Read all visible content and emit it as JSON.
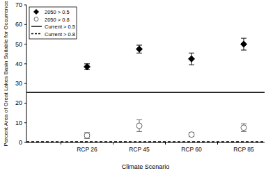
{
  "chart_data": {
    "type": "scatter",
    "x_label": "Climate Scenario",
    "y_label": "Percent Area of Great Lakes Basin Suitable for Occurrence",
    "categories": [
      null,
      "RCP 26",
      "RCP 45",
      "RCP 60",
      "RCP 85"
    ],
    "ylim": [
      0,
      70
    ],
    "yticks": [
      0,
      10,
      20,
      30,
      40,
      50,
      60,
      70
    ],
    "legend": "upper left",
    "series": [
      {
        "name": "2050 > 0.5",
        "type": "scatter",
        "marker": "diamond",
        "color": "#000000",
        "values": [
          null,
          38.5,
          47.5,
          42.5,
          50
        ],
        "errors": [
          null,
          1.5,
          2,
          3,
          3
        ]
      },
      {
        "name": "2050 > 0.8",
        "type": "scatter",
        "marker": "open_circle",
        "color": "#666666",
        "values": [
          null,
          3.5,
          8.5,
          4,
          7.5
        ],
        "errors": [
          null,
          1.5,
          3,
          1,
          2
        ]
      },
      {
        "name": "Current > 0.5",
        "type": "hline",
        "line_style": "solid",
        "color": "#000000",
        "value": 25.5
      },
      {
        "name": "Current > 0.8",
        "type": "hline",
        "line_style": "dashed",
        "color": "#000000",
        "value": 0.3
      }
    ]
  }
}
